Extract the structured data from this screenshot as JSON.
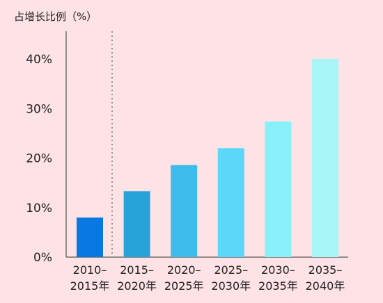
{
  "chart_data": {
    "type": "bar",
    "ylabel": "占增长比例（%）",
    "categories": [
      [
        "2010–",
        "2015年"
      ],
      [
        "2015–",
        "2020年"
      ],
      [
        "2020–",
        "2025年"
      ],
      [
        "2025–",
        "2030年"
      ],
      [
        "2030–",
        "2035年"
      ],
      [
        "2035–",
        "2040年"
      ]
    ],
    "values": [
      8,
      13.3,
      18.6,
      22,
      27.4,
      40
    ],
    "ylim": [
      0,
      40
    ],
    "yticks": [
      0,
      10,
      20,
      30,
      40
    ],
    "ytick_labels": [
      "0%",
      "10%",
      "20%",
      "30%",
      "40%"
    ],
    "bar_colors": [
      "#0a78e2",
      "#27a3da",
      "#3dbbea",
      "#5bd8f7",
      "#88f0f8",
      "#a9f6f8"
    ],
    "divider_after_index": 0,
    "grid": false,
    "legend": "none"
  }
}
